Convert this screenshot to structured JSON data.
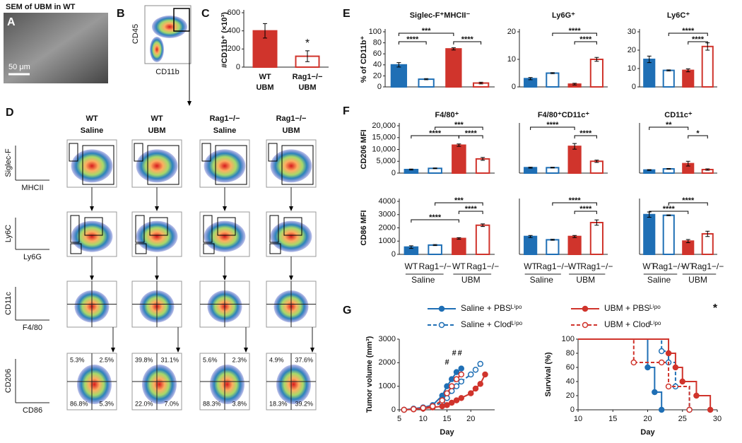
{
  "panels": {
    "A": {
      "letter": "A",
      "title": "SEM of UBM in WT",
      "scale": "50 μm"
    },
    "B": {
      "letter": "B",
      "y_axis": "CD45",
      "x_axis": "CD11b"
    },
    "C": {
      "letter": "C"
    },
    "D": {
      "letter": "D",
      "columns": [
        [
          "WT",
          "Saline"
        ],
        [
          "WT",
          "UBM"
        ],
        [
          "Rag1−/−",
          "Saline"
        ],
        [
          "Rag1−/−",
          "UBM"
        ]
      ],
      "axes": [
        [
          "Siglec-F",
          "MHCII"
        ],
        [
          "Ly6C",
          "Ly6G"
        ],
        [
          "CD11c",
          "F4/80"
        ],
        [
          "CD206",
          "CD86"
        ]
      ],
      "quadrants": [
        [
          "5.3%",
          "2.5%",
          "86.8%",
          "5.3%"
        ],
        [
          "39.8%",
          "31.1%",
          "22.0%",
          "7.0%"
        ],
        [
          "5.6%",
          "2.3%",
          "88.3%",
          "3.8%"
        ],
        [
          "4.9%",
          "37.6%",
          "18.3%",
          "39.2%"
        ]
      ]
    },
    "E": {
      "letter": "E"
    },
    "F": {
      "letter": "F"
    },
    "G": {
      "letter": "G"
    }
  },
  "bar_groups": {
    "categories": [
      "WT",
      "Rag1−/−",
      "WT",
      "Rag1−/−"
    ],
    "groups": [
      "Saline",
      "UBM"
    ]
  },
  "chart_data": [
    {
      "type": "bar",
      "ylabel": "#CD11b⁺ (×10³)",
      "categories": [
        [
          "WT",
          "UBM"
        ],
        [
          "Rag1−/−",
          "UBM"
        ]
      ],
      "values": [
        400,
        120
      ],
      "errors": [
        80,
        60
      ],
      "colors": [
        "#d0342c",
        "#d0342c"
      ],
      "filled": [
        true,
        false
      ],
      "ylim": [
        0,
        600
      ],
      "yticks": [
        0,
        200,
        400,
        600
      ],
      "annotations": [
        "*"
      ]
    },
    {
      "type": "bar",
      "title": "Siglec-F⁺MHCII⁻",
      "ylabel": "% of CD11b⁺",
      "values": [
        40,
        14,
        69,
        7
      ],
      "errors": [
        4,
        1,
        2,
        1.5
      ],
      "colors": [
        "#1f6fb5",
        "#1f6fb5",
        "#d0342c",
        "#d0342c"
      ],
      "filled": [
        true,
        false,
        true,
        false
      ],
      "ylim": [
        0,
        100
      ],
      "yticks": [
        0,
        20,
        40,
        60,
        80,
        100
      ],
      "annotations": [
        "***",
        "****",
        "****"
      ]
    },
    {
      "type": "bar",
      "title": "Ly6G⁺",
      "values": [
        3,
        5,
        1,
        10
      ],
      "errors": [
        0.4,
        0.2,
        0.3,
        0.7
      ],
      "colors": [
        "#1f6fb5",
        "#1f6fb5",
        "#d0342c",
        "#d0342c"
      ],
      "filled": [
        true,
        false,
        true,
        false
      ],
      "ylim": [
        0,
        20
      ],
      "yticks": [
        0,
        10,
        20
      ],
      "annotations": [
        "****",
        "****"
      ]
    },
    {
      "type": "bar",
      "title": "Ly6C⁺",
      "values": [
        15,
        9,
        9,
        22
      ],
      "errors": [
        1.8,
        0.3,
        0.8,
        2
      ],
      "colors": [
        "#1f6fb5",
        "#1f6fb5",
        "#d0342c",
        "#d0342c"
      ],
      "filled": [
        true,
        false,
        true,
        false
      ],
      "ylim": [
        0,
        30
      ],
      "yticks": [
        0,
        10,
        20,
        30
      ],
      "annotations": [
        "****",
        "****"
      ]
    },
    {
      "type": "bar",
      "title": "F4/80⁺",
      "ylabel": "CD206 MFI",
      "values": [
        1500,
        2000,
        11800,
        6000
      ],
      "errors": [
        200,
        150,
        500,
        600
      ],
      "colors": [
        "#1f6fb5",
        "#1f6fb5",
        "#d0342c",
        "#d0342c"
      ],
      "filled": [
        true,
        false,
        true,
        false
      ],
      "ylim": [
        0,
        20000
      ],
      "yticks": [
        0,
        {
          "value": 5000,
          "label": "5,000"
        },
        {
          "value": 10000,
          "label": "10,000"
        },
        {
          "value": 15000,
          "label": "15,000"
        },
        {
          "value": 20000,
          "label": "20,000"
        }
      ],
      "annotations": [
        "****",
        "***",
        "****"
      ]
    },
    {
      "type": "bar",
      "title": "F4/80⁺CD11c⁺",
      "values": [
        2300,
        2300,
        11300,
        5000
      ],
      "errors": [
        200,
        150,
        1200,
        500
      ],
      "colors": [
        "#1f6fb5",
        "#1f6fb5",
        "#d0342c",
        "#d0342c"
      ],
      "filled": [
        true,
        false,
        true,
        false
      ],
      "ylim": [
        0,
        20000
      ],
      "annotations": [
        "****",
        "****"
      ]
    },
    {
      "type": "bar",
      "title": "CD11c⁺",
      "values": [
        1300,
        1800,
        4000,
        1500
      ],
      "errors": [
        150,
        150,
        1000,
        300
      ],
      "colors": [
        "#1f6fb5",
        "#1f6fb5",
        "#d0342c",
        "#d0342c"
      ],
      "filled": [
        true,
        false,
        true,
        false
      ],
      "ylim": [
        0,
        20000
      ],
      "annotations": [
        "**",
        "*"
      ]
    },
    {
      "type": "bar",
      "ylabel": "CD86 MFI",
      "values": [
        550,
        700,
        1200,
        2200
      ],
      "errors": [
        100,
        40,
        60,
        100
      ],
      "colors": [
        "#1f6fb5",
        "#1f6fb5",
        "#d0342c",
        "#d0342c"
      ],
      "filled": [
        true,
        false,
        true,
        false
      ],
      "ylim": [
        0,
        4000
      ],
      "yticks": [
        0,
        1000,
        2000,
        3000,
        4000
      ],
      "annotations": [
        "***",
        "****",
        "****"
      ]
    },
    {
      "type": "bar",
      "values": [
        1350,
        1100,
        1350,
        2400
      ],
      "errors": [
        80,
        40,
        80,
        200
      ],
      "colors": [
        "#1f6fb5",
        "#1f6fb5",
        "#d0342c",
        "#d0342c"
      ],
      "filled": [
        true,
        false,
        true,
        false
      ],
      "ylim": [
        0,
        4000
      ],
      "annotations": [
        "****",
        "****"
      ]
    },
    {
      "type": "bar",
      "values": [
        3000,
        2950,
        1000,
        1550
      ],
      "errors": [
        200,
        30,
        120,
        200
      ],
      "colors": [
        "#1f6fb5",
        "#1f6fb5",
        "#d0342c",
        "#d0342c"
      ],
      "filled": [
        true,
        false,
        true,
        false
      ],
      "ylim": [
        0,
        4000
      ],
      "annotations": [
        "****",
        "****"
      ]
    },
    {
      "type": "line",
      "xlabel": "Day",
      "ylabel": "Tumor volume (mm³)",
      "xlim": [
        5,
        25
      ],
      "xticks": [
        5,
        10,
        15,
        20
      ],
      "ylim": [
        0,
        3000
      ],
      "yticks": [
        0,
        1000,
        2000,
        3000
      ],
      "annotations": [
        "#",
        "#",
        "#",
        "*"
      ],
      "series": [
        {
          "name": "Saline + PBSᴸⁱᵖᵒ",
          "color": "#1f6fb5",
          "dashed": false,
          "filled": true,
          "x": [
            6,
            8,
            10,
            12,
            14,
            15,
            16,
            17,
            18
          ],
          "values": [
            0,
            50,
            100,
            200,
            600,
            1000,
            1300,
            1600,
            1750
          ]
        },
        {
          "name": "Saline + Clodᴸⁱᵖᵒ",
          "color": "#1f6fb5",
          "dashed": true,
          "filled": false,
          "x": [
            6,
            8,
            10,
            12,
            14,
            15,
            16,
            17,
            18,
            20,
            21,
            22
          ],
          "values": [
            0,
            30,
            80,
            150,
            300,
            500,
            800,
            1000,
            1200,
            1500,
            1700,
            1950
          ]
        },
        {
          "name": "UBM + PBSᴸⁱᵖᵒ",
          "color": "#d0342c",
          "dashed": false,
          "filled": true,
          "x": [
            6,
            8,
            10,
            12,
            14,
            15,
            16,
            17,
            18,
            20,
            21,
            22,
            23
          ],
          "values": [
            0,
            20,
            50,
            100,
            150,
            200,
            300,
            400,
            500,
            700,
            900,
            1100,
            1500
          ]
        },
        {
          "name": "UBM + Clodᴸⁱᵖᵒ",
          "color": "#d0342c",
          "dashed": true,
          "filled": false,
          "x": [
            6,
            8,
            10,
            12,
            14,
            15,
            16,
            17,
            18
          ],
          "values": [
            0,
            30,
            80,
            150,
            400,
            700,
            1000,
            1300,
            1500
          ]
        }
      ]
    },
    {
      "type": "step",
      "xlabel": "Day",
      "ylabel": "Survival (%)",
      "xlim": [
        10,
        30
      ],
      "xticks": [
        10,
        15,
        20,
        25,
        30
      ],
      "ylim": [
        0,
        100
      ],
      "yticks": [
        0,
        20,
        40,
        60,
        80,
        100
      ],
      "series": [
        {
          "color": "#1f6fb5",
          "dashed": false,
          "filled": true,
          "x": [
            10,
            20,
            21,
            22
          ],
          "values": [
            100,
            60,
            25,
            0
          ]
        },
        {
          "color": "#1f6fb5",
          "dashed": true,
          "filled": false,
          "x": [
            10,
            22,
            23,
            24,
            26
          ],
          "values": [
            100,
            83,
            67,
            33,
            0
          ]
        },
        {
          "color": "#d0342c",
          "dashed": false,
          "filled": true,
          "x": [
            10,
            23,
            24,
            25,
            27,
            29
          ],
          "values": [
            100,
            80,
            60,
            40,
            20,
            0
          ]
        },
        {
          "color": "#d0342c",
          "dashed": true,
          "filled": false,
          "x": [
            10,
            18,
            22,
            23,
            26
          ],
          "values": [
            100,
            67,
            67,
            33,
            0
          ]
        }
      ]
    }
  ]
}
